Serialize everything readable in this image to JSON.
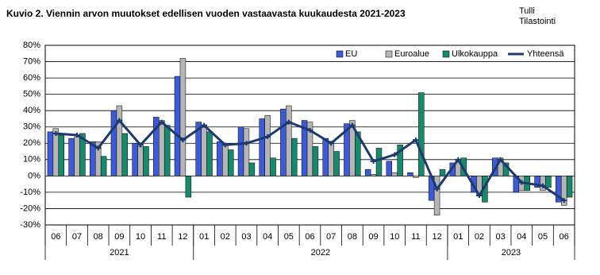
{
  "chart_data": {
    "type": "bar_line",
    "title": "Kuvio 2. Viennin arvon muutokset  edellisen vuoden vastaavasta  kuukaudesta 2021-2023",
    "source": [
      "Tulli",
      "Tilastointi"
    ],
    "categories": [
      "06",
      "07",
      "08",
      "09",
      "10",
      "11",
      "12",
      "01",
      "02",
      "03",
      "04",
      "05",
      "06",
      "07",
      "08",
      "09",
      "10",
      "11",
      "12",
      "01",
      "02",
      "03",
      "04",
      "05",
      "06"
    ],
    "years": [
      "2021",
      "2022",
      "2023"
    ],
    "series": [
      {
        "name": "EU",
        "color": "#3d5ad8",
        "kind": "bar",
        "values": [
          27,
          23,
          21,
          40,
          20,
          36,
          61,
          33,
          21,
          30,
          35,
          41,
          34,
          23,
          32,
          4,
          9,
          2,
          -15,
          8,
          -10,
          11,
          -10,
          -7,
          -16
        ]
      },
      {
        "name": "Euroalue",
        "color": "#b5b5b5",
        "kind": "bar",
        "values": [
          29,
          24,
          21,
          43,
          18,
          34,
          72,
          31,
          19,
          29,
          37,
          43,
          33,
          20,
          34,
          1,
          2,
          -1,
          -24,
          9,
          -12,
          11,
          -9,
          -9,
          -18
        ]
      },
      {
        "name": "Ulkokauppa",
        "color": "#168a6c",
        "kind": "bar",
        "values": [
          25,
          26,
          12,
          26,
          18,
          31,
          -13,
          27,
          16,
          8,
          11,
          23,
          18,
          15,
          27,
          17,
          19,
          51,
          4,
          11,
          -16,
          8,
          -9,
          -7,
          -13
        ]
      },
      {
        "name": "Yhteensä",
        "color": "#1d3a70",
        "kind": "line",
        "values": [
          26,
          25,
          17,
          34,
          19,
          33,
          22,
          31,
          19,
          20,
          24,
          33,
          28,
          20,
          31,
          9,
          13,
          22,
          -8,
          10,
          -12,
          10,
          -4,
          -6,
          -15
        ]
      }
    ],
    "ylim": [
      -30,
      80
    ],
    "yticks": [
      {
        "value": -30,
        "label": "-30%"
      },
      {
        "value": -20,
        "label": "-20%"
      },
      {
        "value": -10,
        "label": "-10%"
      },
      {
        "value": 0,
        "label": "0%"
      },
      {
        "value": 10,
        "label": "10%"
      },
      {
        "value": 20,
        "label": "20%"
      },
      {
        "value": 30,
        "label": "30%"
      },
      {
        "value": 40,
        "label": "40%"
      },
      {
        "value": 50,
        "label": "50%"
      },
      {
        "value": 60,
        "label": "60%"
      },
      {
        "value": 70,
        "label": "70%"
      },
      {
        "value": 80,
        "label": "80%"
      }
    ],
    "grid": true,
    "legend": "top-right"
  }
}
